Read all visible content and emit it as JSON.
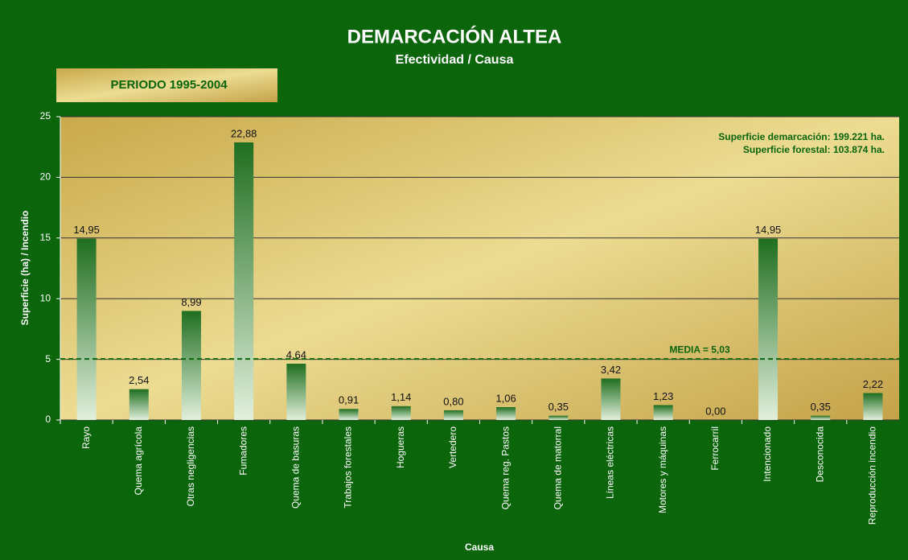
{
  "chart_data": {
    "type": "bar",
    "title": "DEMARCACIÓN  ALTEA",
    "subtitle": "Efectividad / Causa",
    "period": "PERIODO 1995-2004",
    "x_label": "Causa",
    "y_label": "Superficie (ha) / Incendio",
    "annotations": [
      "Superficie demarcación:  199.221 ha.",
      "Superficie forestal:  103.874 ha."
    ],
    "mean_line": {
      "value": 5.03,
      "label": "MEDIA = 5,03"
    },
    "categories": [
      "Rayo",
      "Quema agrícola",
      "Otras negligencias",
      "Fumadores",
      "Quema de basuras",
      "Trabajos forestales",
      "Hogueras",
      "Vertedero",
      "Quema reg. Pastos",
      "Quema de matorral",
      "Líneas eléctricas",
      "Motores y máquinas",
      "Ferrocarril",
      "Intencionado",
      "Desconocida",
      "Reproducción incendio"
    ],
    "values": [
      14.95,
      2.54,
      8.99,
      22.88,
      4.64,
      0.91,
      1.14,
      0.8,
      1.06,
      0.35,
      3.42,
      1.23,
      0.0,
      14.95,
      0.35,
      2.22
    ],
    "value_labels": [
      "14,95",
      "2,54",
      "8,99",
      "22,88",
      "4,64",
      "0,91",
      "1,14",
      "0,80",
      "1,06",
      "0,35",
      "3,42",
      "1,23",
      "0,00",
      "14,95",
      "0,35",
      "2,22"
    ],
    "color": "#1f6e1f",
    "ylim": [
      0,
      25
    ],
    "yticks": [
      0,
      5,
      10,
      15,
      20,
      25
    ],
    "grid": true
  }
}
